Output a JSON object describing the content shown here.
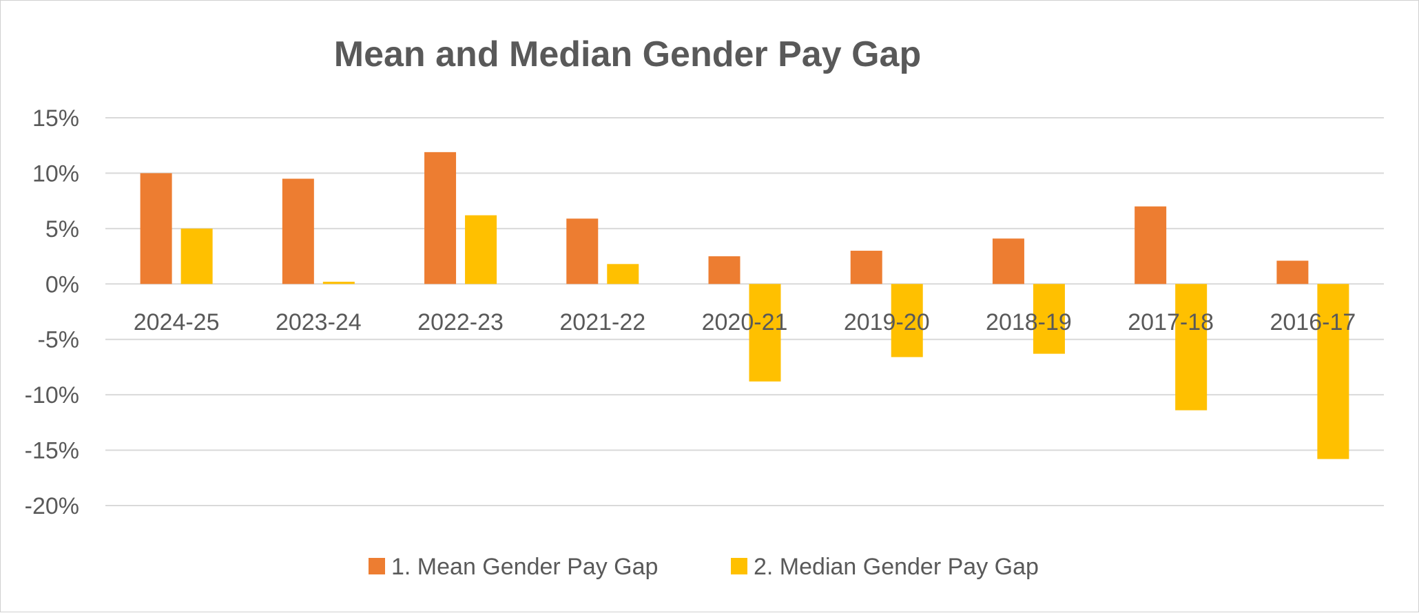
{
  "chart_data": {
    "type": "bar",
    "title": "Mean and Median Gender Pay Gap",
    "xlabel": "",
    "ylabel": "",
    "categories": [
      "2024-25",
      "2023-24",
      "2022-23",
      "2021-22",
      "2020-21",
      "2019-20",
      "2018-19",
      "2017-18",
      "2016-17"
    ],
    "series": [
      {
        "name": "1. Mean Gender Pay Gap",
        "color": "#ED7D31",
        "values": [
          10.0,
          9.5,
          11.9,
          5.9,
          2.5,
          3.0,
          4.1,
          7.0,
          2.1
        ]
      },
      {
        "name": "2. Median Gender Pay Gap",
        "color": "#FFC000",
        "values": [
          5.0,
          0.2,
          6.2,
          1.8,
          -8.8,
          -6.6,
          -6.3,
          -11.4,
          -15.8
        ]
      }
    ],
    "ylim": [
      -20,
      15
    ],
    "yticks": [
      15,
      10,
      5,
      0,
      -5,
      -10,
      -15,
      -20
    ],
    "ytick_labels": [
      "15%",
      "10%",
      "5%",
      "0%",
      "-5%",
      "-10%",
      "-15%",
      "-20%"
    ],
    "grid": true,
    "legend_position": "bottom"
  }
}
